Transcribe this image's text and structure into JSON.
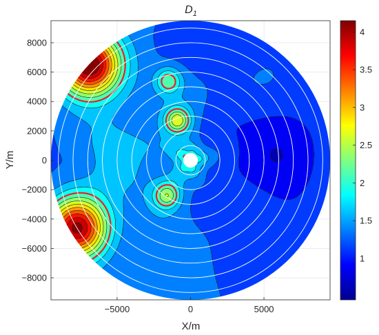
{
  "chart_data": {
    "type": "heatmap",
    "title": "D",
    "title_subscript": "1",
    "xlabel": "X/m",
    "ylabel": "Y/m",
    "xlim": [
      -9500,
      9500
    ],
    "ylim": [
      -9500,
      9500
    ],
    "xticks": [
      -5000,
      0,
      5000
    ],
    "xtick_labels": [
      "−5000",
      "0",
      "5000"
    ],
    "yticks": [
      8000,
      6000,
      4000,
      2000,
      0,
      -2000,
      -4000,
      -6000,
      -8000
    ],
    "ytick_labels": [
      "8000",
      "6000",
      "4000",
      "2000",
      "0",
      "−2000",
      "−4000",
      "−6000",
      "−8000"
    ],
    "grid": true,
    "domain_radius": 9500,
    "inner_hole_radius": 500,
    "ring_radii": [
      1000,
      2000,
      3000,
      4000,
      5000,
      6000,
      7000,
      8000,
      9000
    ],
    "ring_color": "#ffffff",
    "critical_contour_level": 2.0,
    "critical_contour_color": "#e8202a",
    "colorbar": {
      "colormap": "jet",
      "clim": [
        0.45,
        4.15
      ],
      "ticks": [
        1,
        1.5,
        2,
        2.5,
        3,
        3.5,
        4
      ],
      "tick_labels": [
        "1",
        "1.5",
        "2",
        "2.5",
        "3",
        "3.5",
        "4"
      ]
    },
    "hotspots": [
      {
        "x": -6900,
        "y": 6500,
        "peak": 4.1
      },
      {
        "x": -7700,
        "y": -4600,
        "peak": 4.0
      },
      {
        "x": -900,
        "y": 2700,
        "peak": 2.5
      },
      {
        "x": -1600,
        "y": -2400,
        "peak": 2.2
      },
      {
        "x": -1500,
        "y": 5400,
        "peak": 2.1
      }
    ]
  }
}
